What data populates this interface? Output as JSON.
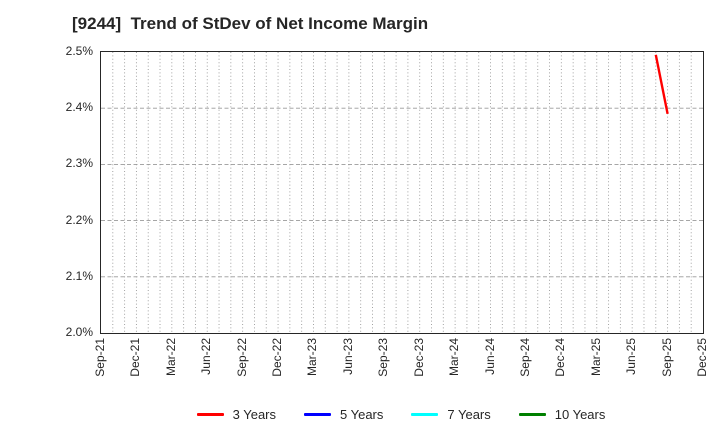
{
  "title": "[9244]  Trend of StDev of Net Income Margin",
  "chart_data": {
    "type": "line",
    "title": "[9244]  Trend of StDev of Net Income Margin",
    "x_axis": {
      "tick_labels": [
        "Sep-21",
        "Dec-21",
        "Mar-22",
        "Jun-22",
        "Sep-22",
        "Dec-22",
        "Mar-23",
        "Jun-23",
        "Sep-23",
        "Dec-23",
        "Mar-24",
        "Jun-24",
        "Sep-24",
        "Dec-24",
        "Mar-25",
        "Jun-25",
        "Sep-25",
        "Dec-25"
      ],
      "months_per_tick": 3,
      "total_months": 51,
      "grid_style": "monthly dotted vertical lines"
    },
    "y_axis": {
      "tick_labels": [
        "2.5%",
        "2.4%",
        "2.3%",
        "2.2%",
        "2.1%",
        "2.0%"
      ],
      "min": 2.0,
      "max": 2.5,
      "unit": "%",
      "grid_style": "dashed horizontal lines every 0.1%"
    },
    "series": [
      {
        "name": "3 Years",
        "color": "#ff0000",
        "points": [
          {
            "x_label": "Aug-25",
            "month_index": 47,
            "value": 2.495
          },
          {
            "x_label": "Sep-25",
            "month_index": 48,
            "value": 2.39
          }
        ]
      },
      {
        "name": "5 Years",
        "color": "#0000ff",
        "points": []
      },
      {
        "name": "7 Years",
        "color": "#00ffff",
        "points": []
      },
      {
        "name": "10 Years",
        "color": "#008000",
        "points": []
      }
    ],
    "legend": {
      "position": "bottom-center",
      "entries": [
        "3 Years",
        "5 Years",
        "7 Years",
        "10 Years"
      ]
    },
    "colors": {
      "grid": "#999999",
      "border": "#262626",
      "text": "#262626",
      "background": "#ffffff"
    }
  }
}
